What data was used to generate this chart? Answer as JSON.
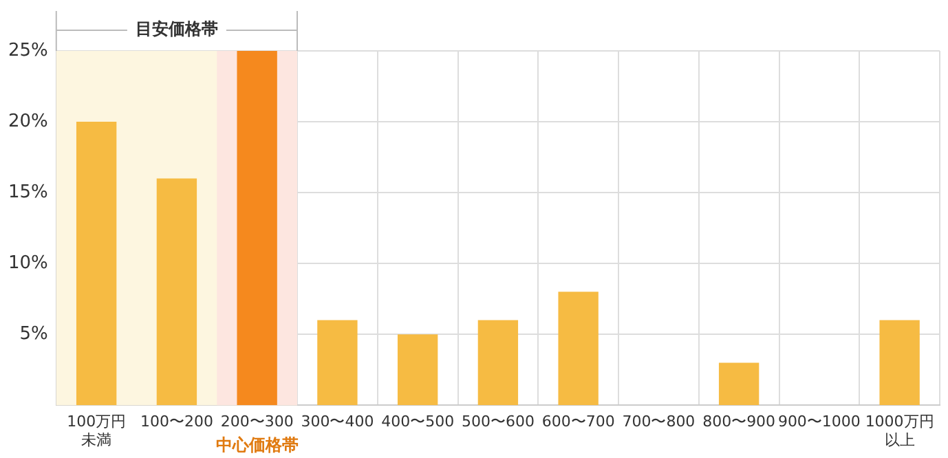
{
  "chart_data": {
    "type": "bar",
    "categories": [
      "100万円未満",
      "100〜200",
      "200〜300",
      "300〜400",
      "400〜500",
      "500〜600",
      "600〜700",
      "700〜800",
      "800〜900",
      "900〜1000",
      "1000万円以上"
    ],
    "values": [
      20,
      16,
      25,
      6,
      5,
      6,
      8,
      0,
      3,
      0,
      6
    ],
    "colors": [
      "#f6bb43",
      "#f6bb43",
      "#f5891e",
      "#f6bb43",
      "#f6bb43",
      "#f6bb43",
      "#f6bb43",
      "#f6bb43",
      "#f6bb43",
      "#f6bb43",
      "#f6bb43"
    ],
    "ylim": [
      0,
      25
    ],
    "yticks": [
      {
        "value": 5,
        "label": "5%"
      },
      {
        "value": 10,
        "label": "10%"
      },
      {
        "value": 15,
        "label": "15%"
      },
      {
        "value": 20,
        "label": "20%"
      },
      {
        "value": 25,
        "label": "25%"
      }
    ],
    "bands": [
      {
        "axis": "x",
        "from": "100万円未満",
        "to": "200〜300",
        "label": "目安価格帯",
        "color": "#fdf6e0"
      },
      {
        "axis": "x",
        "from": "200〜300",
        "to": "200〜300",
        "label": "中心価格帯",
        "color": "#fde6e0"
      }
    ],
    "grid": true,
    "legend": false
  }
}
